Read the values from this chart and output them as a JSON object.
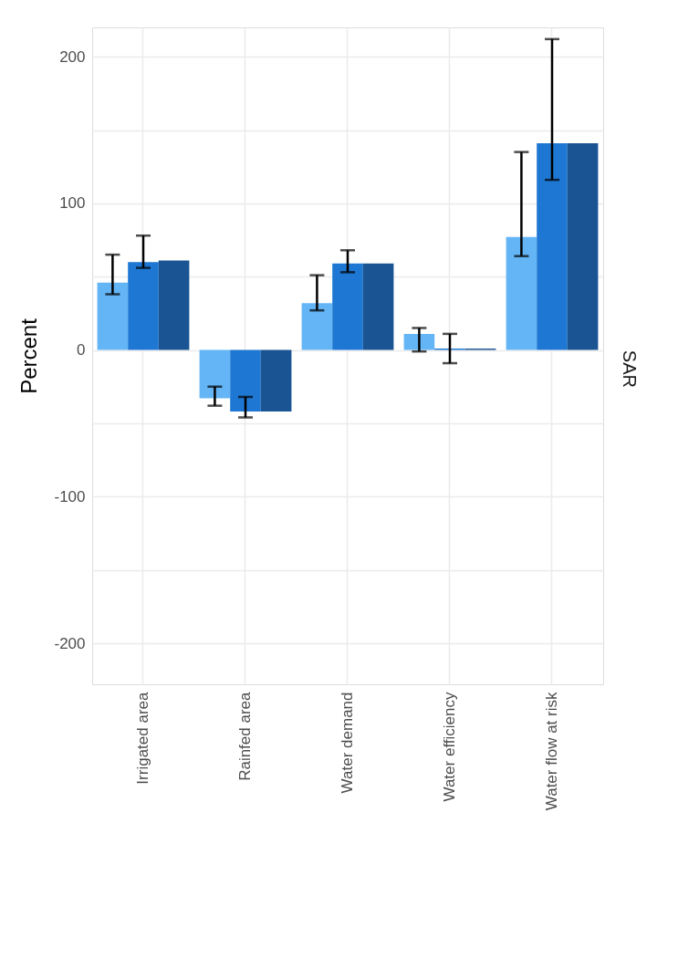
{
  "chart_data": {
    "type": "bar",
    "ylabel": "Percent",
    "annotations": [
      "SAR"
    ],
    "categories": [
      "Irrigated area",
      "Rainfed area",
      "Water demand",
      "Water efficiency",
      "Water flow at risk"
    ],
    "series": [
      {
        "color": "#64b5f6",
        "values": [
          46,
          -33,
          32,
          11,
          77
        ],
        "errors": [
          [
            38,
            65
          ],
          [
            -38,
            -25
          ],
          [
            27,
            51
          ],
          [
            -1,
            15
          ],
          [
            64,
            135
          ]
        ]
      },
      {
        "color": "#1e77d2",
        "values": [
          60,
          -42,
          59,
          1,
          141
        ],
        "errors": [
          [
            56,
            78
          ],
          [
            -46,
            -32
          ],
          [
            53,
            68
          ],
          [
            -9,
            11
          ],
          [
            116,
            212
          ]
        ]
      },
      {
        "color": "#1a5493",
        "values": [
          61,
          -42,
          59,
          1,
          141
        ]
      }
    ],
    "ylim": [
      -228,
      220
    ],
    "yticks": [
      -200,
      {
        "value": -150,
        "label": null
      },
      -100,
      {
        "value": -50,
        "label": null
      },
      0,
      {
        "value": 50,
        "label": null
      },
      100,
      {
        "value": 150,
        "label": null
      },
      200
    ],
    "grid": true
  }
}
